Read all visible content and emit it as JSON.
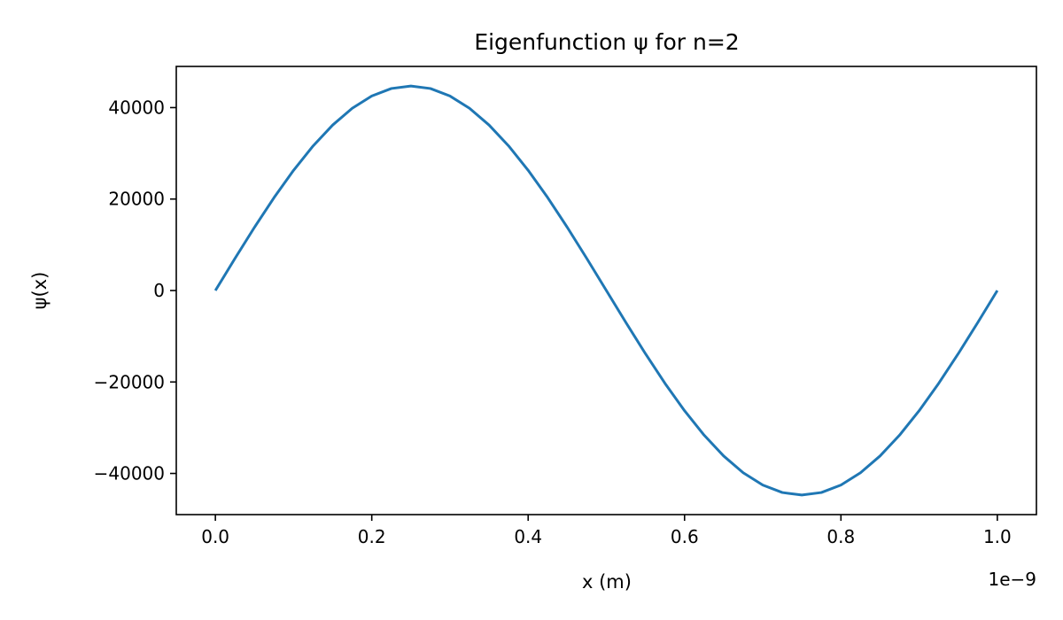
{
  "chart_data": {
    "type": "line",
    "title": "Eigenfunction ψ for n=2",
    "xlabel": "x (m)",
    "ylabel": "ψ(x)",
    "x_offset_label": "1e−9",
    "xlim": [
      -5e-11,
      1.05e-09
    ],
    "ylim": [
      -49000,
      49000
    ],
    "x_ticks": [
      {
        "value": 0.0,
        "label": "0.0"
      },
      {
        "value": 2e-10,
        "label": "0.2"
      },
      {
        "value": 4e-10,
        "label": "0.4"
      },
      {
        "value": 6e-10,
        "label": "0.6"
      },
      {
        "value": 8e-10,
        "label": "0.8"
      },
      {
        "value": 1e-09,
        "label": "1.0"
      }
    ],
    "y_ticks": [
      {
        "value": 40000,
        "label": "40000"
      },
      {
        "value": 20000,
        "label": "20000"
      },
      {
        "value": 0,
        "label": "0"
      },
      {
        "value": -20000,
        "label": "−20000"
      },
      {
        "value": -40000,
        "label": "−40000"
      }
    ],
    "grid": false,
    "series": [
      {
        "color": "#1f77b4",
        "x": [
          0,
          2.5e-11,
          5e-11,
          7.5e-11,
          1e-10,
          1.25e-10,
          1.5e-10,
          1.75e-10,
          2e-10,
          2.25e-10,
          2.5e-10,
          2.75e-10,
          3e-10,
          3.25e-10,
          3.5e-10,
          3.75e-10,
          4e-10,
          4.25e-10,
          4.5e-10,
          4.75e-10,
          5e-10,
          5.25e-10,
          5.5e-10,
          5.75e-10,
          6e-10,
          6.25e-10,
          6.5e-10,
          6.75e-10,
          7e-10,
          7.25e-10,
          7.5e-10,
          7.75e-10,
          8e-10,
          8.25e-10,
          8.5e-10,
          8.75e-10,
          9e-10,
          9.25e-10,
          9.5e-10,
          9.75e-10,
          1e-09
        ],
        "y": [
          0,
          6996,
          13820,
          20304,
          26287,
          31623,
          36180,
          39848,
          42533,
          44172,
          44721,
          44172,
          42533,
          39848,
          36180,
          31623,
          26287,
          20304,
          13820,
          6996,
          0,
          -6996,
          -13820,
          -20304,
          -26287,
          -31623,
          -36180,
          -39848,
          -42533,
          -44172,
          -44721,
          -44172,
          -42533,
          -39848,
          -36180,
          -31623,
          -26287,
          -20304,
          -13820,
          -6996,
          0
        ]
      }
    ]
  }
}
